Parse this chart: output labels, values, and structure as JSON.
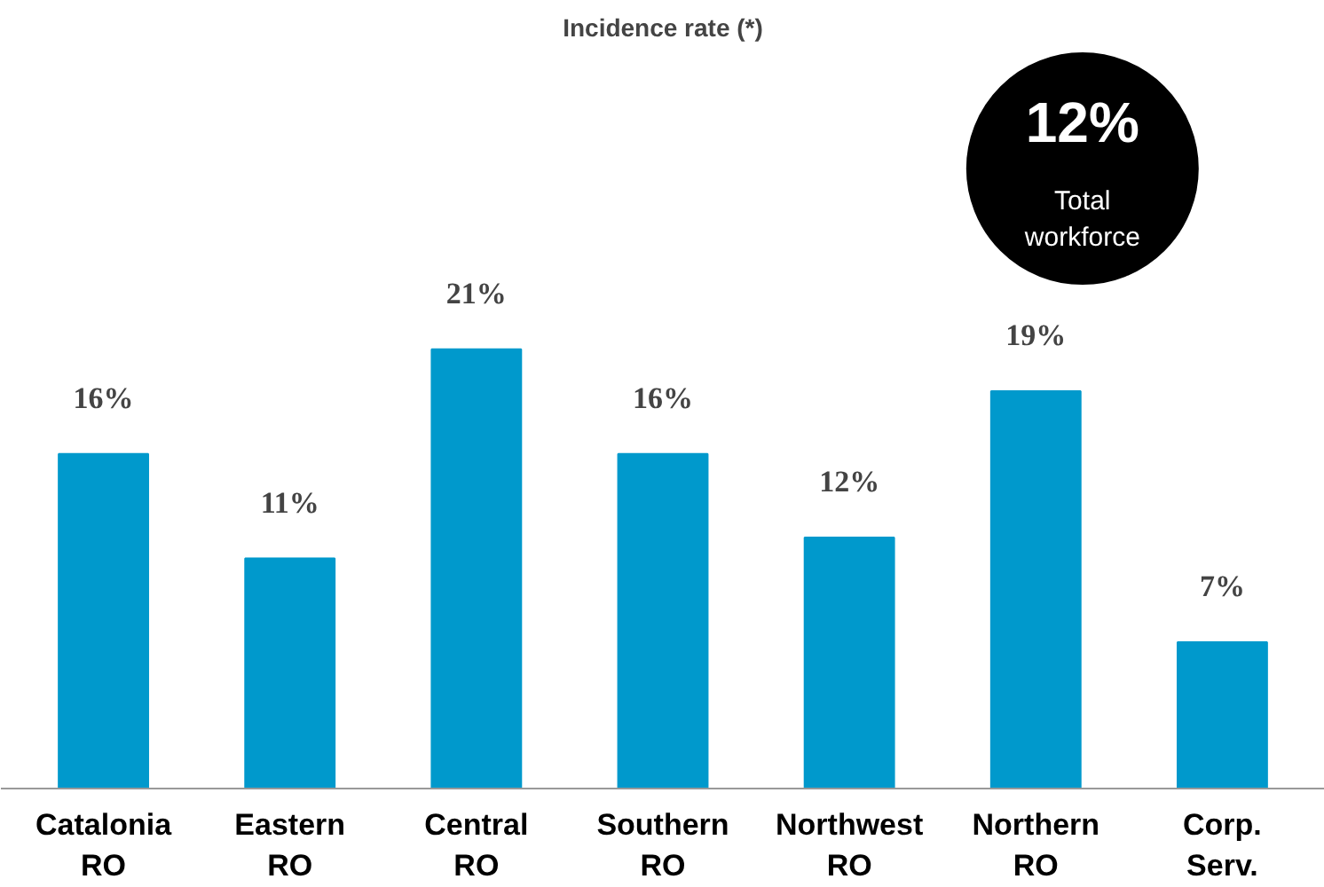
{
  "chart_data": {
    "type": "bar",
    "title": "Incidence rate (*)",
    "categories": [
      "Catalonia\nRO",
      "Eastern\nRO",
      "Central\nRO",
      "Southern\nRO",
      "Northwest\nRO",
      "Northern\nRO",
      "Corp.\nServ."
    ],
    "values": [
      16,
      11,
      21,
      16,
      12,
      19,
      7
    ],
    "color": "#0099cc",
    "data_labels": true,
    "value_labels": [
      "16%",
      "11%",
      "21%",
      "16%",
      "12%",
      "19%",
      "7%"
    ],
    "annotations": [
      "12%",
      "Total workforce"
    ]
  }
}
